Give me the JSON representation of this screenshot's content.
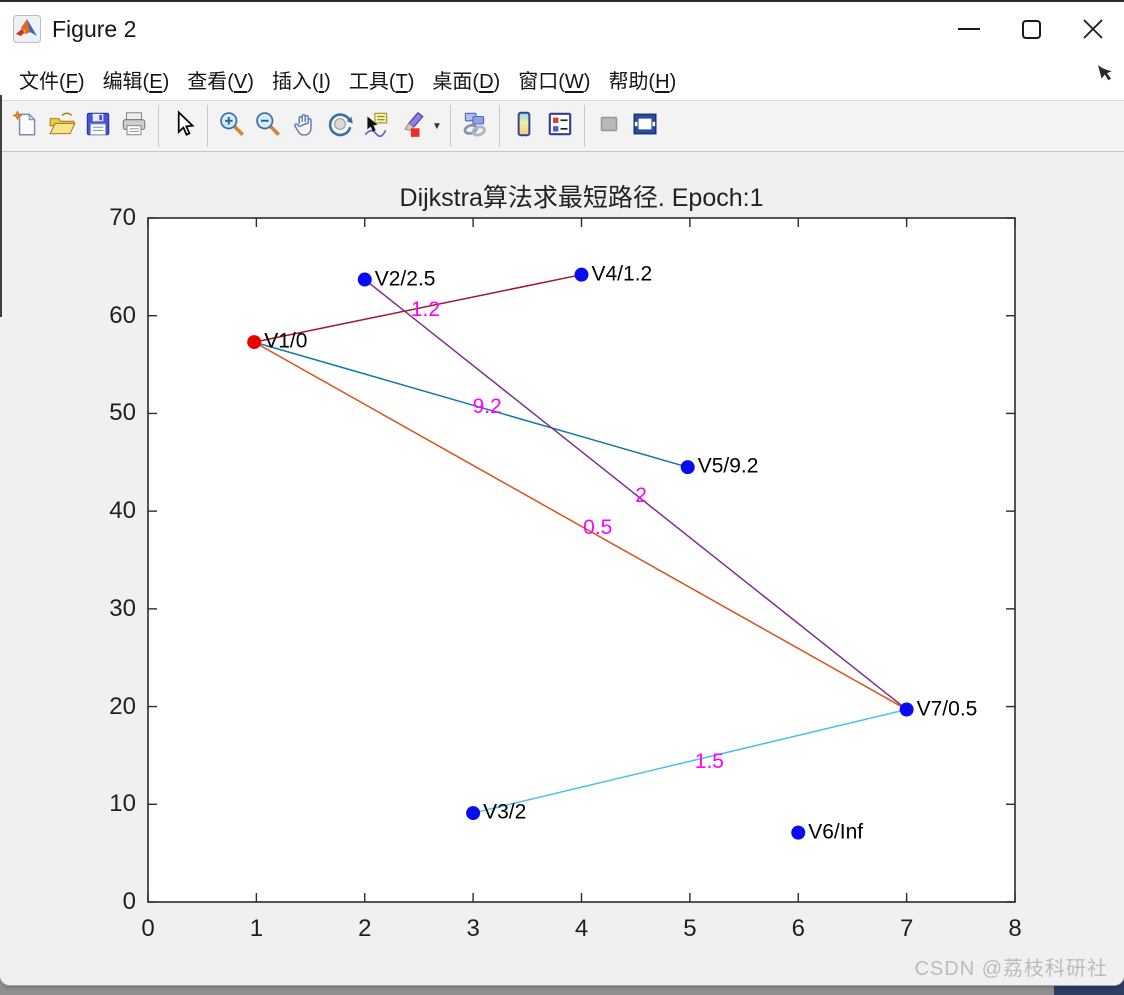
{
  "window": {
    "title": "Figure 2",
    "app_icon": "matlab-logo",
    "controls": [
      {
        "name": "minimize"
      },
      {
        "name": "maximize"
      },
      {
        "name": "close"
      }
    ]
  },
  "menu": {
    "items": [
      {
        "pre": "文件(",
        "key": "F",
        "post": ")"
      },
      {
        "pre": "编辑(",
        "key": "E",
        "post": ")"
      },
      {
        "pre": "查看(",
        "key": "V",
        "post": ")"
      },
      {
        "pre": "插入(",
        "key": "I",
        "post": ")"
      },
      {
        "pre": "工具(",
        "key": "T",
        "post": ")"
      },
      {
        "pre": "桌面(",
        "key": "D",
        "post": ")"
      },
      {
        "pre": "窗口(",
        "key": "W",
        "post": ")"
      },
      {
        "pre": "帮助(",
        "key": "H",
        "post": ")"
      }
    ],
    "cursor_icon": "mouse-arrow"
  },
  "toolbar": {
    "items": [
      {
        "type": "button",
        "icon": "new-figure"
      },
      {
        "type": "button",
        "icon": "open-file"
      },
      {
        "type": "button",
        "icon": "save-figure"
      },
      {
        "type": "button",
        "icon": "print-figure"
      },
      {
        "type": "separator"
      },
      {
        "type": "button",
        "icon": "pointer"
      },
      {
        "type": "separator"
      },
      {
        "type": "button",
        "icon": "zoom-in"
      },
      {
        "type": "button",
        "icon": "zoom-out"
      },
      {
        "type": "button",
        "icon": "pan"
      },
      {
        "type": "button",
        "icon": "rotate-3d"
      },
      {
        "type": "button",
        "icon": "data-cursor"
      },
      {
        "type": "button",
        "icon": "brush",
        "dropdown": true
      },
      {
        "type": "separator"
      },
      {
        "type": "button",
        "icon": "link-plot"
      },
      {
        "type": "separator"
      },
      {
        "type": "button",
        "icon": "insert-colorbar"
      },
      {
        "type": "button",
        "icon": "insert-legend"
      },
      {
        "type": "separator"
      },
      {
        "type": "button",
        "icon": "hide-plot-tools"
      },
      {
        "type": "button",
        "icon": "dock-figure"
      }
    ]
  },
  "chart_data": {
    "type": "scatter",
    "subtype": "graph-network",
    "title": "Dijkstra算法求最短路径. Epoch:1",
    "xlim": [
      0,
      8
    ],
    "ylim": [
      0,
      70
    ],
    "xticks": [
      0,
      1,
      2,
      3,
      4,
      5,
      6,
      7,
      8
    ],
    "yticks": [
      0,
      10,
      20,
      30,
      40,
      50,
      60,
      70
    ],
    "grid": false,
    "box": true,
    "marker_radius": 7,
    "edge_label_color": "#ff00ff",
    "nodes": [
      {
        "id": "V1",
        "label": "V1/0",
        "x": 0.98,
        "y": 57.3,
        "color": "#ee0000"
      },
      {
        "id": "V2",
        "label": "V2/2.5",
        "x": 2.0,
        "y": 63.7,
        "color": "#0b0bf0"
      },
      {
        "id": "V3",
        "label": "V3/2",
        "x": 3.0,
        "y": 9.1,
        "color": "#0b0bf0"
      },
      {
        "id": "V4",
        "label": "V4/1.2",
        "x": 4.0,
        "y": 64.2,
        "color": "#0b0bf0"
      },
      {
        "id": "V5",
        "label": "V5/9.2",
        "x": 4.98,
        "y": 44.5,
        "color": "#0b0bf0"
      },
      {
        "id": "V6",
        "label": "V6/Inf",
        "x": 6.0,
        "y": 7.1,
        "color": "#0b0bf0"
      },
      {
        "id": "V7",
        "label": "V7/0.5",
        "x": 7.0,
        "y": 19.7,
        "color": "#0b0bf0"
      }
    ],
    "edges": [
      {
        "from": "V1",
        "to": "V4",
        "weight": "1.2",
        "color": "#a2142f",
        "label_x": 2.56,
        "label_y": 60.6
      },
      {
        "from": "V1",
        "to": "V5",
        "weight": "9.2",
        "color": "#1379a8",
        "label_x": 3.13,
        "label_y": 50.7
      },
      {
        "from": "V2",
        "to": "V7",
        "weight": "2",
        "color": "#7e2f8e",
        "label_x": 4.55,
        "label_y": 41.6
      },
      {
        "from": "V1",
        "to": "V7",
        "weight": "0.5",
        "color": "#d95319",
        "label_x": 4.15,
        "label_y": 38.3
      },
      {
        "from": "V3",
        "to": "V7",
        "weight": "1.5",
        "color": "#4dbeee",
        "label_x": 5.18,
        "label_y": 14.3
      }
    ]
  },
  "watermark": "CSDN @荔枝科研社"
}
